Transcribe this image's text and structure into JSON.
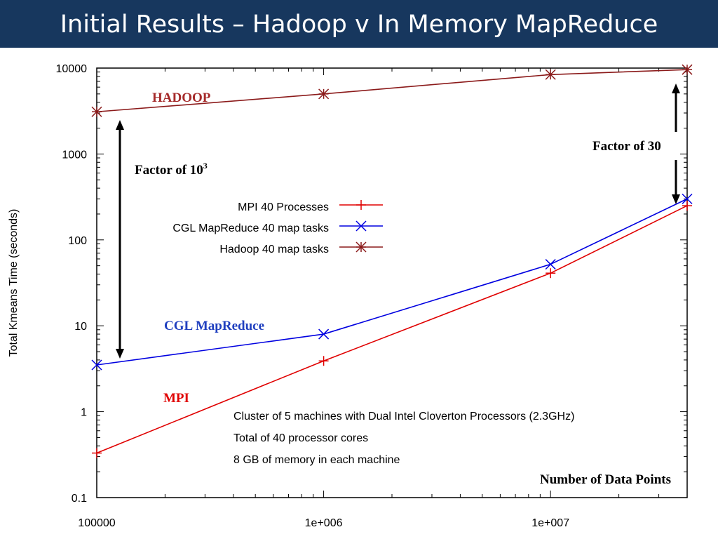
{
  "slide": {
    "title": "Initial Results – Hadoop v In Memory MapReduce",
    "title_bg": "#17375e"
  },
  "chart_data": {
    "type": "line",
    "title": "",
    "xlabel": "Number of Data Points",
    "ylabel": "Total Kmeans Time (seconds)",
    "x_scale": "log",
    "y_scale": "log",
    "xlim": [
      100000,
      40000000
    ],
    "ylim": [
      0.1,
      10000
    ],
    "x_tick_labels": [
      "100000",
      "1e+006",
      "1e+007"
    ],
    "y_tick_labels": [
      "10000",
      "1000",
      "100",
      "10",
      "1",
      "0.1"
    ],
    "series": [
      {
        "name": "MPI 40 Processes",
        "color": "#e00000",
        "marker": "plus",
        "x": [
          100000,
          1000000,
          10000000,
          40000000
        ],
        "y": [
          0.33,
          3.9,
          41,
          250
        ]
      },
      {
        "name": "CGL MapReduce 40 map tasks",
        "color": "#0000e0",
        "marker": "cross",
        "x": [
          100000,
          1000000,
          10000000,
          40000000
        ],
        "y": [
          3.5,
          8,
          52,
          300
        ]
      },
      {
        "name": "Hadoop 40 map tasks",
        "color": "#8b1a1a",
        "marker": "star",
        "x": [
          100000,
          1000000,
          10000000,
          40000000
        ],
        "y": [
          3100,
          5000,
          8400,
          9600
        ]
      }
    ],
    "legend_position": "upper-middle",
    "annotations": {
      "hadoop": {
        "text": "HADOOP",
        "color": "#a52a2a"
      },
      "cgl": {
        "text": "CGL MapReduce",
        "color": "#1f3fbf"
      },
      "mpi": {
        "text": "MPI",
        "color": "#e00000"
      },
      "factor_left": {
        "text": "Factor of 10",
        "sup": "3"
      },
      "factor_right": {
        "text": "Factor of 30"
      },
      "notes": [
        "Cluster of 5 machines with Dual Intel Cloverton Processors (2.3GHz)",
        "Total of 40 processor cores",
        "8 GB of memory in each machine"
      ]
    }
  }
}
